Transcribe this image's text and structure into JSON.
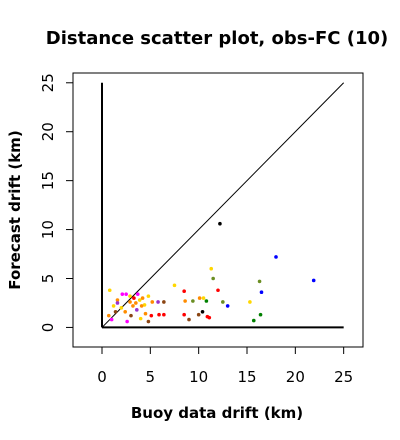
{
  "chart_data": {
    "type": "scatter",
    "title": "Distance scatter plot, obs-FC (10)",
    "xlabel": "Buoy data drift (km)",
    "ylabel": "Forecast drift (km)",
    "xlim": [
      -3,
      27
    ],
    "ylim": [
      -2,
      26
    ],
    "xticks": [
      0,
      5,
      10,
      15,
      20,
      25
    ],
    "yticks": [
      0,
      5,
      10,
      15,
      20,
      25
    ],
    "grid": false,
    "colors": {
      "frame": "#000000",
      "reference": "#000000",
      "point_palette": [
        "#ff0000",
        "#ffd700",
        "#ff8c00",
        "#8b4513",
        "#0000ff",
        "#008000",
        "#ff00ff",
        "#9932cc",
        "#6b8e23",
        "#000000"
      ]
    },
    "reference_lines": [
      {
        "x": [
          0,
          25
        ],
        "y": [
          0,
          25
        ]
      },
      {
        "x": [
          0,
          0
        ],
        "y": [
          0,
          25
        ]
      },
      {
        "x": [
          0,
          25
        ],
        "y": [
          0,
          0
        ]
      }
    ],
    "points": [
      {
        "x": 0.8,
        "y": 3.8,
        "color": "#ffd700"
      },
      {
        "x": 1.6,
        "y": 2.8,
        "color": "#ff8c00"
      },
      {
        "x": 1.6,
        "y": 2.5,
        "color": "#9932cc"
      },
      {
        "x": 2.1,
        "y": 3.4,
        "color": "#ff00ff"
      },
      {
        "x": 2.5,
        "y": 3.4,
        "color": "#ff00ff"
      },
      {
        "x": 2.9,
        "y": 3.2,
        "color": "#ffd700"
      },
      {
        "x": 3.3,
        "y": 3.0,
        "color": "#ff0000"
      },
      {
        "x": 3.5,
        "y": 2.5,
        "color": "#ff8c00"
      },
      {
        "x": 3.7,
        "y": 3.4,
        "color": "#ff00ff"
      },
      {
        "x": 3.9,
        "y": 2.8,
        "color": "#ffd700"
      },
      {
        "x": 4.2,
        "y": 3.0,
        "color": "#ff8c00"
      },
      {
        "x": 4.4,
        "y": 2.3,
        "color": "#ffd700"
      },
      {
        "x": 4.8,
        "y": 3.2,
        "color": "#ffd700"
      },
      {
        "x": 5.2,
        "y": 2.6,
        "color": "#ff8c00"
      },
      {
        "x": 5.8,
        "y": 2.6,
        "color": "#9932cc"
      },
      {
        "x": 6.4,
        "y": 2.6,
        "color": "#8b4513"
      },
      {
        "x": 7.5,
        "y": 4.3,
        "color": "#ffd700"
      },
      {
        "x": 8.5,
        "y": 3.7,
        "color": "#ff0000"
      },
      {
        "x": 8.6,
        "y": 2.7,
        "color": "#ff8c00"
      },
      {
        "x": 9.4,
        "y": 2.7,
        "color": "#6b8e23"
      },
      {
        "x": 10.1,
        "y": 3.0,
        "color": "#ff8c00"
      },
      {
        "x": 10.5,
        "y": 3.0,
        "color": "#ffd700"
      },
      {
        "x": 10.8,
        "y": 2.7,
        "color": "#008000"
      },
      {
        "x": 11.3,
        "y": 6.0,
        "color": "#ffd700"
      },
      {
        "x": 11.5,
        "y": 5.0,
        "color": "#6b8e23"
      },
      {
        "x": 12.0,
        "y": 3.8,
        "color": "#ff0000"
      },
      {
        "x": 12.2,
        "y": 10.6,
        "color": "#000000"
      },
      {
        "x": 12.5,
        "y": 2.6,
        "color": "#6b8e23"
      },
      {
        "x": 13.0,
        "y": 2.2,
        "color": "#0000ff"
      },
      {
        "x": 15.3,
        "y": 2.6,
        "color": "#ffd700"
      },
      {
        "x": 15.7,
        "y": 0.7,
        "color": "#008000"
      },
      {
        "x": 16.3,
        "y": 4.7,
        "color": "#6b8e23"
      },
      {
        "x": 16.4,
        "y": 1.3,
        "color": "#008000"
      },
      {
        "x": 16.5,
        "y": 3.6,
        "color": "#0000ff"
      },
      {
        "x": 18.0,
        "y": 7.2,
        "color": "#0000ff"
      },
      {
        "x": 21.9,
        "y": 4.8,
        "color": "#0000ff"
      },
      {
        "x": 1.0,
        "y": 0.8,
        "color": "#ff00ff"
      },
      {
        "x": 1.4,
        "y": 1.6,
        "color": "#8b4513"
      },
      {
        "x": 2.0,
        "y": 2.0,
        "color": "#ffd700"
      },
      {
        "x": 2.6,
        "y": 0.6,
        "color": "#ff00ff"
      },
      {
        "x": 3.0,
        "y": 1.2,
        "color": "#8b4513"
      },
      {
        "x": 3.6,
        "y": 1.8,
        "color": "#9932cc"
      },
      {
        "x": 4.0,
        "y": 0.9,
        "color": "#ffd700"
      },
      {
        "x": 4.5,
        "y": 1.4,
        "color": "#ff8c00"
      },
      {
        "x": 4.8,
        "y": 0.6,
        "color": "#8b4513"
      },
      {
        "x": 5.1,
        "y": 1.2,
        "color": "#ff0000"
      },
      {
        "x": 5.9,
        "y": 1.3,
        "color": "#ff0000"
      },
      {
        "x": 6.4,
        "y": 1.3,
        "color": "#ff0000"
      },
      {
        "x": 8.5,
        "y": 1.3,
        "color": "#ff0000"
      },
      {
        "x": 9.0,
        "y": 0.8,
        "color": "#8b4513"
      },
      {
        "x": 10.0,
        "y": 1.3,
        "color": "#8b4513"
      },
      {
        "x": 10.4,
        "y": 1.6,
        "color": "#000000"
      },
      {
        "x": 10.9,
        "y": 1.1,
        "color": "#ff0000"
      },
      {
        "x": 11.1,
        "y": 1.0,
        "color": "#ff0000"
      },
      {
        "x": 2.9,
        "y": 2.6,
        "color": "#ff8c00"
      },
      {
        "x": 3.2,
        "y": 2.2,
        "color": "#ff8c00"
      },
      {
        "x": 1.2,
        "y": 2.2,
        "color": "#ffd700"
      },
      {
        "x": 2.4,
        "y": 1.6,
        "color": "#ff8c00"
      },
      {
        "x": 4.1,
        "y": 2.2,
        "color": "#ff8c00"
      },
      {
        "x": 0.7,
        "y": 1.2,
        "color": "#ff8c00"
      }
    ]
  }
}
